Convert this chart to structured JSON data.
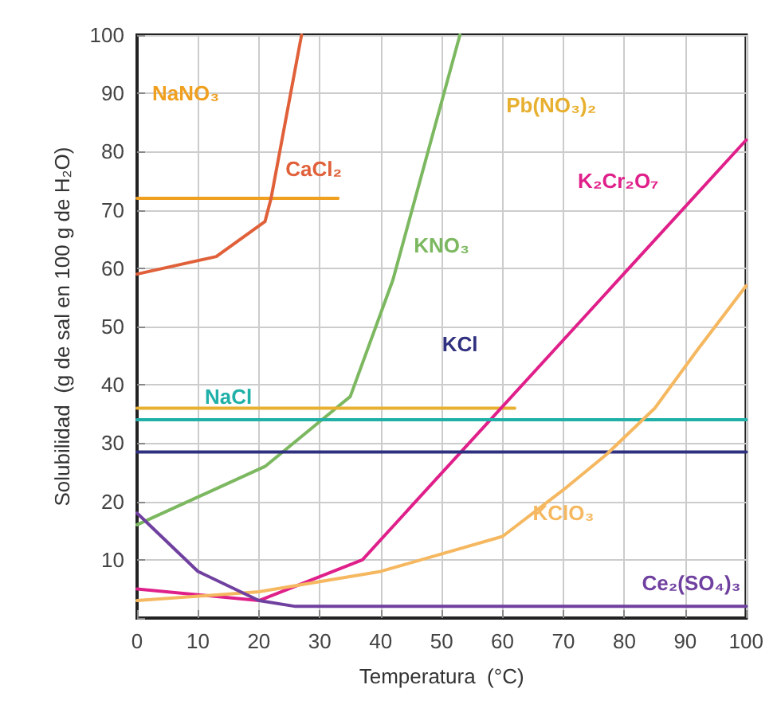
{
  "chart_data": {
    "type": "line",
    "xlabel": "Temperatura  (°C)",
    "ylabel": "Solubilidad  (g de sal en 100 g de H₂O)",
    "xlim": [
      0,
      100
    ],
    "xticks": [
      0,
      10,
      20,
      30,
      40,
      50,
      60,
      70,
      80,
      90,
      100
    ],
    "ylim": [
      0,
      100
    ],
    "yticks": [
      {
        "value": 0,
        "label": null
      },
      10,
      20,
      30,
      40,
      50,
      60,
      70,
      80,
      90,
      100
    ],
    "grid": true,
    "legend": false,
    "marker": "none",
    "line_style": "solid",
    "series": [
      {
        "name": "NaNO₃",
        "color": "#f0a020",
        "x": [
          0,
          33
        ],
        "values": [
          72,
          72
        ]
      },
      {
        "name": "CaCl₂",
        "color": "#e0603a",
        "x": [
          0,
          13,
          21,
          22,
          27
        ],
        "values": [
          59,
          62,
          68,
          72,
          100
        ]
      },
      {
        "name": "KNO₃",
        "color": "#7cb860",
        "x": [
          0,
          21,
          35,
          42,
          53
        ],
        "values": [
          16,
          26,
          38,
          58,
          100
        ]
      },
      {
        "name": "Pb(NO₃)₂",
        "color": "#e8b030",
        "x": [
          0,
          62
        ],
        "values": [
          36,
          36
        ]
      },
      {
        "name": "K₂Cr₂O₇",
        "color": "#e0208a",
        "x": [
          0,
          20,
          37,
          100
        ],
        "values": [
          5,
          3,
          10,
          82
        ]
      },
      {
        "name": "KCl",
        "color": "#303080",
        "x": [
          0,
          100
        ],
        "values": [
          28.5,
          28.5
        ]
      },
      {
        "name": "NaCl",
        "color": "#20b0a8",
        "x": [
          0,
          100
        ],
        "values": [
          34,
          34
        ]
      },
      {
        "name": "KClO₃",
        "color": "#f5b860",
        "x": [
          0,
          20,
          40,
          60,
          70,
          77,
          85,
          92,
          100
        ],
        "values": [
          3,
          4.5,
          8,
          14,
          22,
          28,
          36,
          46,
          57
        ]
      },
      {
        "name": "Ce₂(SO₄)₃",
        "color": "#7040a0",
        "x": [
          0,
          10,
          20,
          26,
          100
        ],
        "values": [
          18,
          8,
          3,
          2,
          2
        ]
      }
    ]
  }
}
